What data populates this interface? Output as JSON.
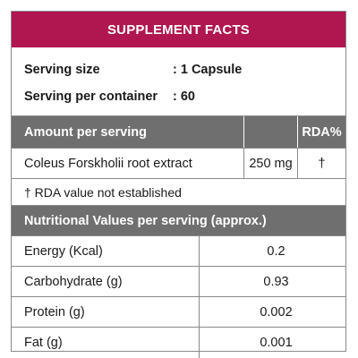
{
  "title": "SUPPLEMENT FACTS",
  "serving": [
    {
      "label": "Serving size",
      "value": ": 1 Capsule"
    },
    {
      "label": "Serving per container",
      "value": ": 60"
    }
  ],
  "amount_header": {
    "col1": "Amount per serving",
    "col2": "",
    "col3": "RDA%"
  },
  "ingredient": {
    "name": "Coleus Forskholii root extract",
    "amount": "250 mg",
    "rda": "†"
  },
  "note": "† RDA value not established",
  "nutrition_header": "Nutritional Values per serving (approx.)",
  "nutrition": [
    {
      "label": "Energy (Kcal)",
      "value": "0.2"
    },
    {
      "label": "Carbohydrate (g)",
      "value": "0.93"
    },
    {
      "label": "Protein (g)",
      "value": "0.002"
    },
    {
      "label": "Fat (g)",
      "value": "0.001"
    }
  ],
  "colors": {
    "title_bar": "#b0164f",
    "header_gray": "#6f6f6f"
  }
}
